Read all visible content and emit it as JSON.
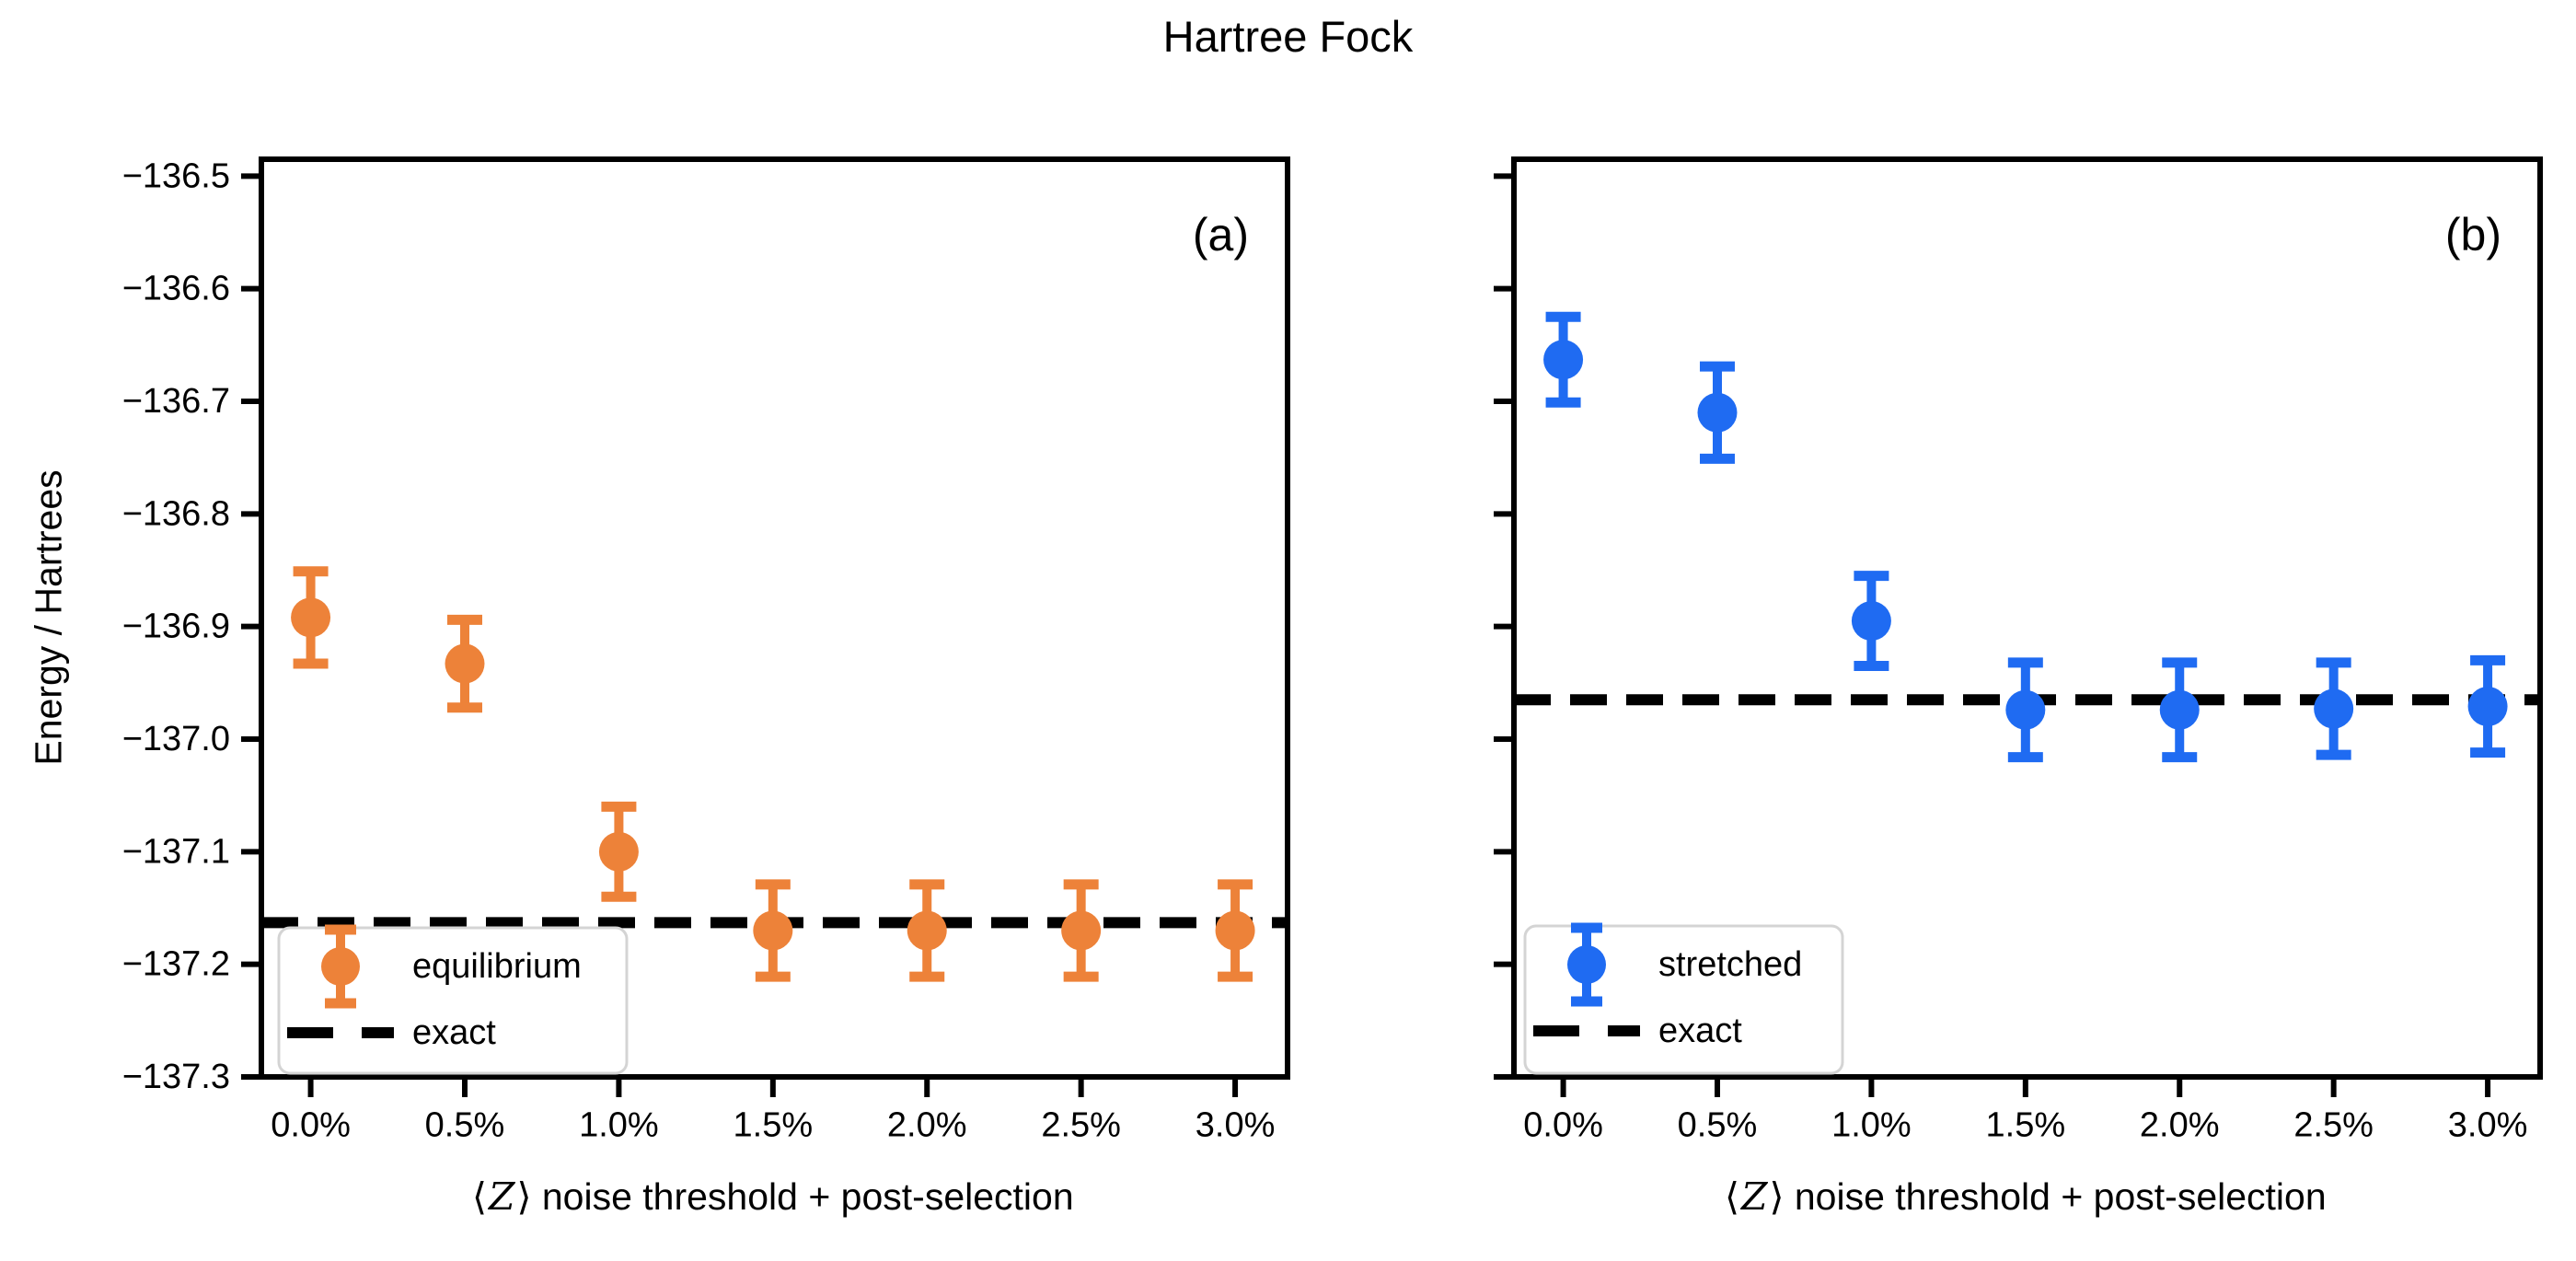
{
  "title": "Hartree Fock",
  "ylabel": "Energy / Hartrees",
  "xlabel": {
    "left_bracket": "⟨",
    "symbol": "Z",
    "rest": "⟩ noise threshold + post-selection"
  },
  "colors": {
    "equilibrium": "#ED8239",
    "stretched": "#1F6BF2",
    "exact": "#000000",
    "legend_border": "#D4D4D4"
  },
  "chart_data": [
    {
      "type": "scatter",
      "panel_label": "(a)",
      "xlabel": "⟨Z⟩ noise threshold + post-selection",
      "ylabel": "Energy / Hartrees",
      "xtick_labels": [
        "0.0%",
        "0.5%",
        "1.0%",
        "1.5%",
        "2.0%",
        "2.5%",
        "3.0%"
      ],
      "xtick_values": [
        0,
        0.5,
        1,
        1.5,
        2,
        2.5,
        3
      ],
      "ytick_values": [
        -136.5,
        -136.6,
        -136.7,
        -136.8,
        -136.9,
        -137.0,
        -137.1,
        -137.2,
        -137.3
      ],
      "show_ytick_labels": true,
      "grid": false,
      "legend_position": "lower left",
      "xlim": [
        -0.16,
        3.17
      ],
      "ylim": [
        -137.3,
        -136.485
      ],
      "series": [
        {
          "name": "equilibrium",
          "color": "#ED8239",
          "x": [
            0,
            0.5,
            1,
            1.5,
            2,
            2.5,
            3
          ],
          "y": [
            -136.892,
            -136.933,
            -137.1,
            -137.17,
            -137.17,
            -137.17,
            -137.17
          ],
          "yerr": [
            0.041,
            0.039,
            0.04,
            0.041,
            0.041,
            0.041,
            0.041
          ]
        }
      ],
      "exact_line": {
        "label": "exact",
        "value": -137.163,
        "color": "#000000",
        "style": "dashed"
      },
      "legend": [
        {
          "swatch": "errorbar-marker",
          "label": "equilibrium",
          "color": "#ED8239"
        },
        {
          "swatch": "dashed-line",
          "label": "exact",
          "color": "#000000"
        }
      ]
    },
    {
      "type": "scatter",
      "panel_label": "(b)",
      "xlabel": "⟨Z⟩ noise threshold + post-selection",
      "ylabel": "",
      "xtick_labels": [
        "0.0%",
        "0.5%",
        "1.0%",
        "1.5%",
        "2.0%",
        "2.5%",
        "3.0%"
      ],
      "xtick_values": [
        0,
        0.5,
        1,
        1.5,
        2,
        2.5,
        3
      ],
      "ytick_values": [
        -136.5,
        -136.6,
        -136.7,
        -136.8,
        -136.9,
        -137.0,
        -137.1,
        -137.2,
        -137.3
      ],
      "show_ytick_labels": false,
      "grid": false,
      "legend_position": "lower left",
      "xlim": [
        -0.16,
        3.17
      ],
      "ylim": [
        -137.3,
        -136.485
      ],
      "series": [
        {
          "name": "stretched",
          "color": "#1F6BF2",
          "x": [
            0,
            0.5,
            1,
            1.5,
            2,
            2.5,
            3
          ],
          "y": [
            -136.663,
            -136.71,
            -136.895,
            -136.974,
            -136.974,
            -136.973,
            -136.971
          ],
          "yerr": [
            0.038,
            0.041,
            0.04,
            0.042,
            0.042,
            0.041,
            0.041
          ]
        }
      ],
      "exact_line": {
        "label": "exact",
        "value": -136.965,
        "color": "#000000",
        "style": "dashed"
      },
      "legend": [
        {
          "swatch": "errorbar-marker",
          "label": "stretched",
          "color": "#1F6BF2"
        },
        {
          "swatch": "dashed-line",
          "label": "exact",
          "color": "#000000"
        }
      ]
    }
  ]
}
